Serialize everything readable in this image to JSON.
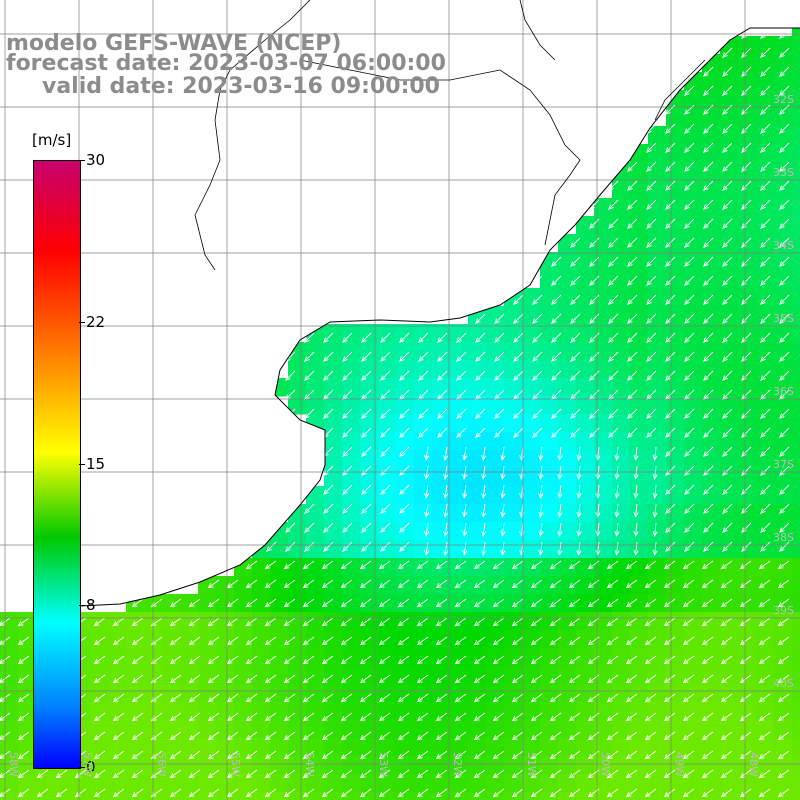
{
  "title": {
    "model": "modelo GEFS-WAVE (NCEP)",
    "forecast": "forecast date: 2023-03-07 06:00:00",
    "valid": "valid date: 2023-03-16 09:00:00"
  },
  "colorbar": {
    "unit": "[m/s]",
    "ticks": [
      "30",
      "22",
      "15",
      "8",
      "0"
    ],
    "tick_values": [
      30,
      22,
      15,
      8,
      0
    ],
    "range": [
      0,
      30
    ],
    "colors": [
      "#0000ff",
      "#0080ff",
      "#00ffff",
      "#00c800",
      "#ffff00",
      "#ff8000",
      "#ff0000",
      "#c8006e"
    ]
  },
  "map": {
    "land_color": "#ffffff",
    "coast_color": "#000000",
    "grid_color": "#808080",
    "arrow_color": "#ffffff",
    "lat_labels": [
      "32S",
      "33S",
      "34S",
      "35S",
      "36S",
      "37S",
      "38S",
      "39S",
      "40S"
    ],
    "lon_labels": [
      "58W",
      "57W",
      "56W",
      "55W",
      "54W",
      "53W",
      "52W",
      "51W",
      "50W",
      "49W",
      "48W"
    ],
    "wind_direction": "from northeast, pointing southwest",
    "speed_range_ms": [
      6,
      13
    ]
  }
}
